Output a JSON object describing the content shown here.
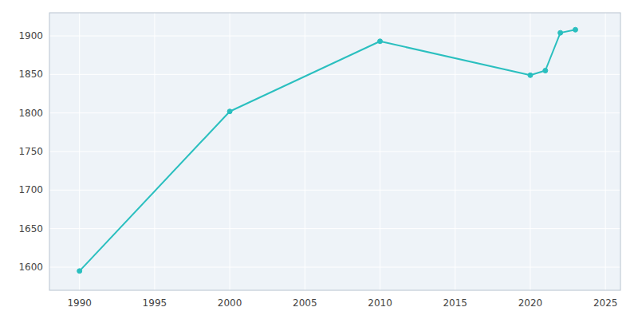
{
  "chart_data": {
    "type": "line",
    "x": [
      1990,
      2000,
      2010,
      2020,
      2021,
      2022,
      2023
    ],
    "values": [
      1595,
      1802,
      1893,
      1849,
      1855,
      1904,
      1908
    ],
    "color": "#2abfbf",
    "marker": "circle",
    "xlim": [
      1988,
      2026
    ],
    "ylim": [
      1570,
      1930
    ],
    "xticks": [
      1990,
      1995,
      2000,
      2005,
      2010,
      2015,
      2020,
      2025
    ],
    "yticks": [
      1600,
      1650,
      1700,
      1750,
      1800,
      1850,
      1900
    ],
    "grid": true
  }
}
